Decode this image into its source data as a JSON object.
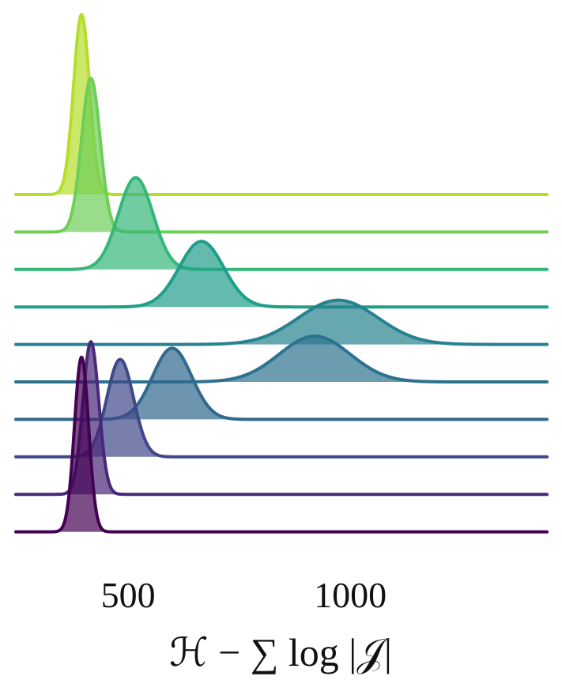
{
  "chart_data": {
    "type": "ridgeline",
    "x_label": "ℋ − ∑ log |𝒥|",
    "xlim": [
      247,
      1443
    ],
    "xticks": [
      500,
      1000
    ],
    "series": [
      {
        "color": "#b5de2b",
        "mean": 395,
        "sd": 18,
        "peak": 4.8
      },
      {
        "color": "#6ece58",
        "mean": 416,
        "sd": 21,
        "peak": 4.1
      },
      {
        "color": "#35b779",
        "mean": 517,
        "sd": 39,
        "peak": 2.45
      },
      {
        "color": "#1f9e89",
        "mean": 665,
        "sd": 50,
        "peak": 1.75
      },
      {
        "color": "#26828e",
        "mean": 973,
        "sd": 89,
        "peak": 1.18
      },
      {
        "color": "#2c728e",
        "mean": 920,
        "sd": 80,
        "peak": 1.22
      },
      {
        "color": "#31688e",
        "mean": 599,
        "sd": 44,
        "peak": 1.9
      },
      {
        "color": "#3e4989",
        "mean": 482,
        "sd": 30,
        "peak": 2.6
      },
      {
        "color": "#482878",
        "mean": 416,
        "sd": 18,
        "peak": 4.07
      },
      {
        "color": "#440154",
        "mean": 395,
        "sd": 16,
        "peak": 4.66
      }
    ]
  }
}
